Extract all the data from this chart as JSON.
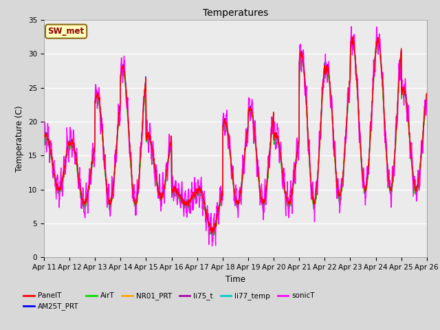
{
  "title": "Temperatures",
  "xlabel": "Time",
  "ylabel": "Temperature (C)",
  "ylim": [
    0,
    35
  ],
  "yticks": [
    0,
    5,
    10,
    15,
    20,
    25,
    30,
    35
  ],
  "date_labels": [
    "Apr 11",
    "Apr 12",
    "Apr 13",
    "Apr 14",
    "Apr 15",
    "Apr 16",
    "Apr 17",
    "Apr 18",
    "Apr 19",
    "Apr 20",
    "Apr 21",
    "Apr 22",
    "Apr 23",
    "Apr 24",
    "Apr 25",
    "Apr 26"
  ],
  "series": {
    "PanelT": {
      "color": "#FF0000",
      "lw": 1.0
    },
    "AM25T_PRT": {
      "color": "#0000FF",
      "lw": 1.0
    },
    "AirT": {
      "color": "#00DD00",
      "lw": 1.0
    },
    "NR01_PRT": {
      "color": "#FFA500",
      "lw": 1.0
    },
    "li75_t": {
      "color": "#AA00AA",
      "lw": 1.0
    },
    "li77_temp": {
      "color": "#00CCCC",
      "lw": 1.0
    },
    "sonicT": {
      "color": "#FF00FF",
      "lw": 1.0
    }
  },
  "legend_order": [
    "PanelT",
    "AM25T_PRT",
    "AirT",
    "NR01_PRT",
    "li75_t",
    "li77_temp",
    "sonicT"
  ],
  "annotation_text": "SW_met",
  "bg_color": "#D8D8D8",
  "plot_bg": "#EBEBEB",
  "day_highs": [
    18,
    17,
    24,
    28,
    18,
    10,
    10,
    20,
    22,
    18,
    30,
    28,
    32,
    32,
    25
  ],
  "day_lows": [
    10,
    8,
    8,
    8,
    9,
    8,
    4,
    8,
    8,
    8,
    8,
    9,
    10,
    10,
    10
  ],
  "n_days": 15,
  "pts_per_day": 96
}
